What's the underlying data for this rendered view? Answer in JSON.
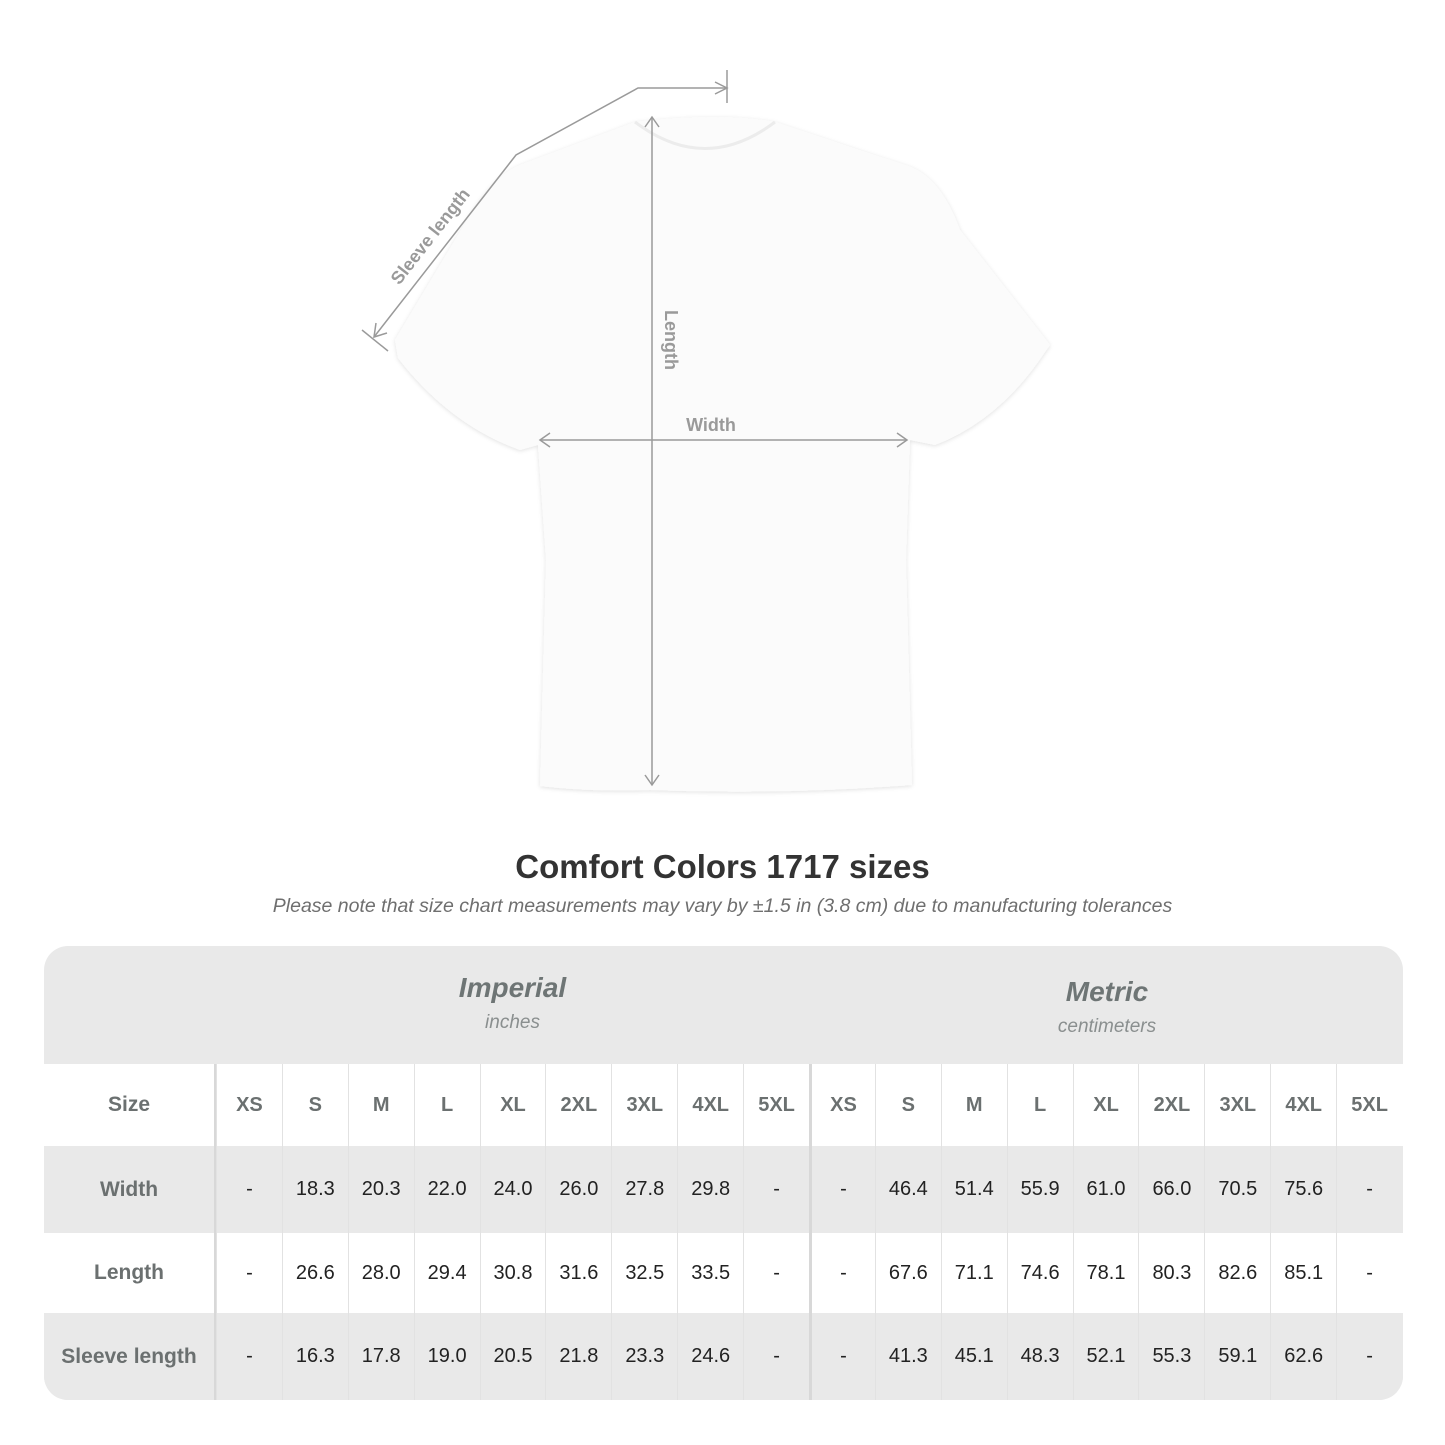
{
  "diagram": {
    "labels": {
      "sleeve": "Sleeve length",
      "length": "Length",
      "width": "Width"
    },
    "shirt_color": "#fbfbfb",
    "line_color": "#9a9a9a"
  },
  "title": "Comfort Colors 1717 sizes",
  "note": "Please note that size chart measurements may vary by ±1.5 in (3.8 cm) due to manufacturing tolerances",
  "table": {
    "imperial": {
      "name": "Imperial",
      "unit": "inches"
    },
    "metric": {
      "name": "Metric",
      "unit": "centimeters"
    },
    "size_label": "Size",
    "sizes": [
      "XS",
      "S",
      "M",
      "L",
      "XL",
      "2XL",
      "3XL",
      "4XL",
      "5XL"
    ],
    "rows": [
      {
        "label": "Width",
        "imperial": [
          "-",
          "18.3",
          "20.3",
          "22.0",
          "24.0",
          "26.0",
          "27.8",
          "29.8",
          "-"
        ],
        "metric": [
          "-",
          "46.4",
          "51.4",
          "55.9",
          "61.0",
          "66.0",
          "70.5",
          "75.6",
          "-"
        ]
      },
      {
        "label": "Length",
        "imperial": [
          "-",
          "26.6",
          "28.0",
          "29.4",
          "30.8",
          "31.6",
          "32.5",
          "33.5",
          "-"
        ],
        "metric": [
          "-",
          "67.6",
          "71.1",
          "74.6",
          "78.1",
          "80.3",
          "82.6",
          "85.1",
          "-"
        ]
      },
      {
        "label": "Sleeve length",
        "imperial": [
          "-",
          "16.3",
          "17.8",
          "19.0",
          "20.5",
          "21.8",
          "23.3",
          "24.6",
          "-"
        ],
        "metric": [
          "-",
          "41.3",
          "45.1",
          "48.3",
          "52.1",
          "55.3",
          "59.1",
          "62.6",
          "-"
        ]
      }
    ]
  }
}
